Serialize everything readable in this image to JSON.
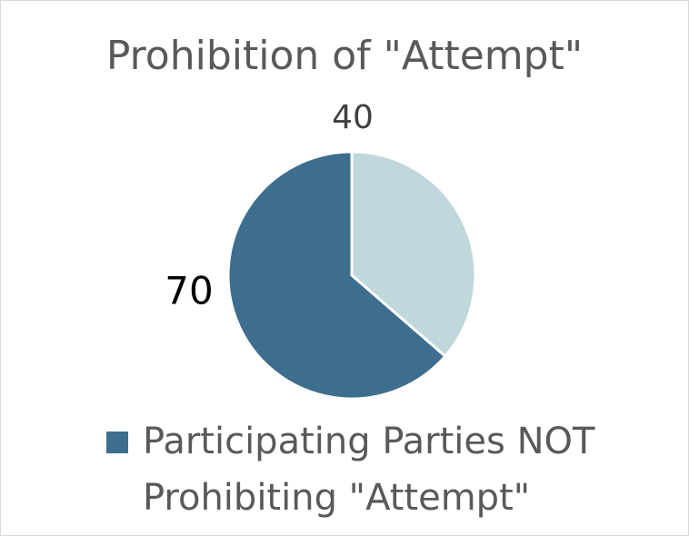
{
  "chart_data": {
    "type": "pie",
    "title": "Prohibition of \"Attempt\"",
    "categories": [
      null,
      "Participating Parties NOT Prohibiting \"Attempt\""
    ],
    "values": [
      40,
      70
    ],
    "colors": [
      "#c0d7dc",
      "#3d6e8e"
    ],
    "legend": "bottom"
  }
}
